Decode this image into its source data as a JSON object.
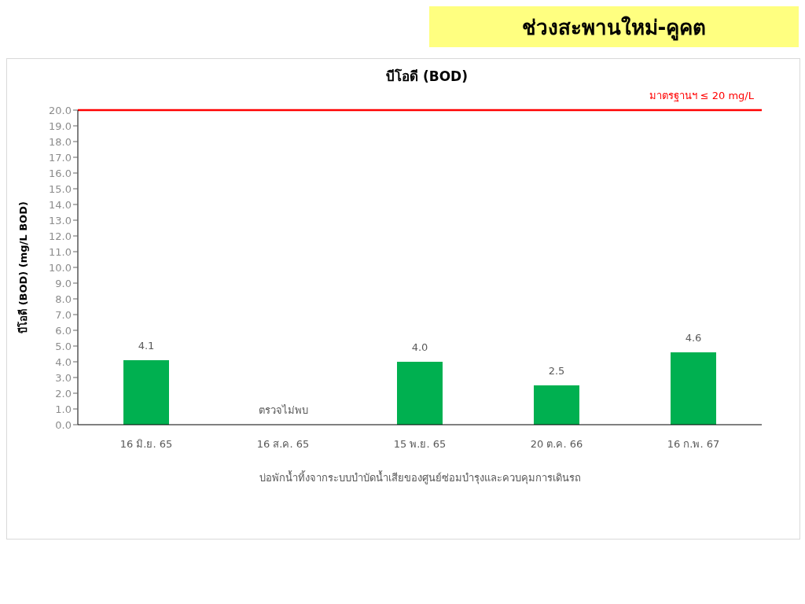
{
  "chart_data": {
    "type": "bar",
    "title": "ช่วงสะพานใหม่-คูคต",
    "subtitle": "บีโอดี (BOD)",
    "xlabel": "บ่อพักน้ำทิ้งจากระบบบำบัดน้ำเสียของศูนย์ซ่อมบำรุงและควบคุมการเดินรถ",
    "ylabel": "บีโอดี (BOD) (mg/L BOD)",
    "categories": [
      "16 มิ.ย. 65",
      "16 ส.ค. 65",
      "15 พ.ย. 65",
      "20 ต.ค. 66",
      "16 ก.พ. 67"
    ],
    "values": [
      4.1,
      null,
      4.0,
      2.5,
      4.6
    ],
    "value_labels": [
      "4.1",
      "ตรวจไม่พบ",
      "4.0",
      "2.5",
      "4.6"
    ],
    "color": "#00b050",
    "ylim": [
      0,
      20
    ],
    "yticks": [
      {
        "value": 0,
        "label": "0.0"
      },
      {
        "value": 1,
        "label": "1.0"
      },
      {
        "value": 2,
        "label": "2.0"
      },
      {
        "value": 3,
        "label": "3.0"
      },
      {
        "value": 4,
        "label": "4.0"
      },
      {
        "value": 5,
        "label": "5.0"
      },
      {
        "value": 6,
        "label": "6.0"
      },
      {
        "value": 7,
        "label": "7.0"
      },
      {
        "value": 8,
        "label": "8.0"
      },
      {
        "value": 9,
        "label": "9.0"
      },
      {
        "value": 10,
        "label": "10.0"
      },
      {
        "value": 11,
        "label": "11.0"
      },
      {
        "value": 12,
        "label": "12.0"
      },
      {
        "value": 13,
        "label": "13.0"
      },
      {
        "value": 14,
        "label": "14.0"
      },
      {
        "value": 15,
        "label": "15.0"
      },
      {
        "value": 16,
        "label": "16.0"
      },
      {
        "value": 17,
        "label": "17.0"
      },
      {
        "value": 18,
        "label": "18.0"
      },
      {
        "value": 19,
        "label": "19.0"
      },
      {
        "value": 20,
        "label": "20.0"
      }
    ],
    "ref_lines": [
      {
        "axis": "y",
        "value": 20,
        "label": "มาตรฐานฯ ≤ 20 mg/L",
        "color": "#ff0000"
      }
    ],
    "grid": false
  }
}
